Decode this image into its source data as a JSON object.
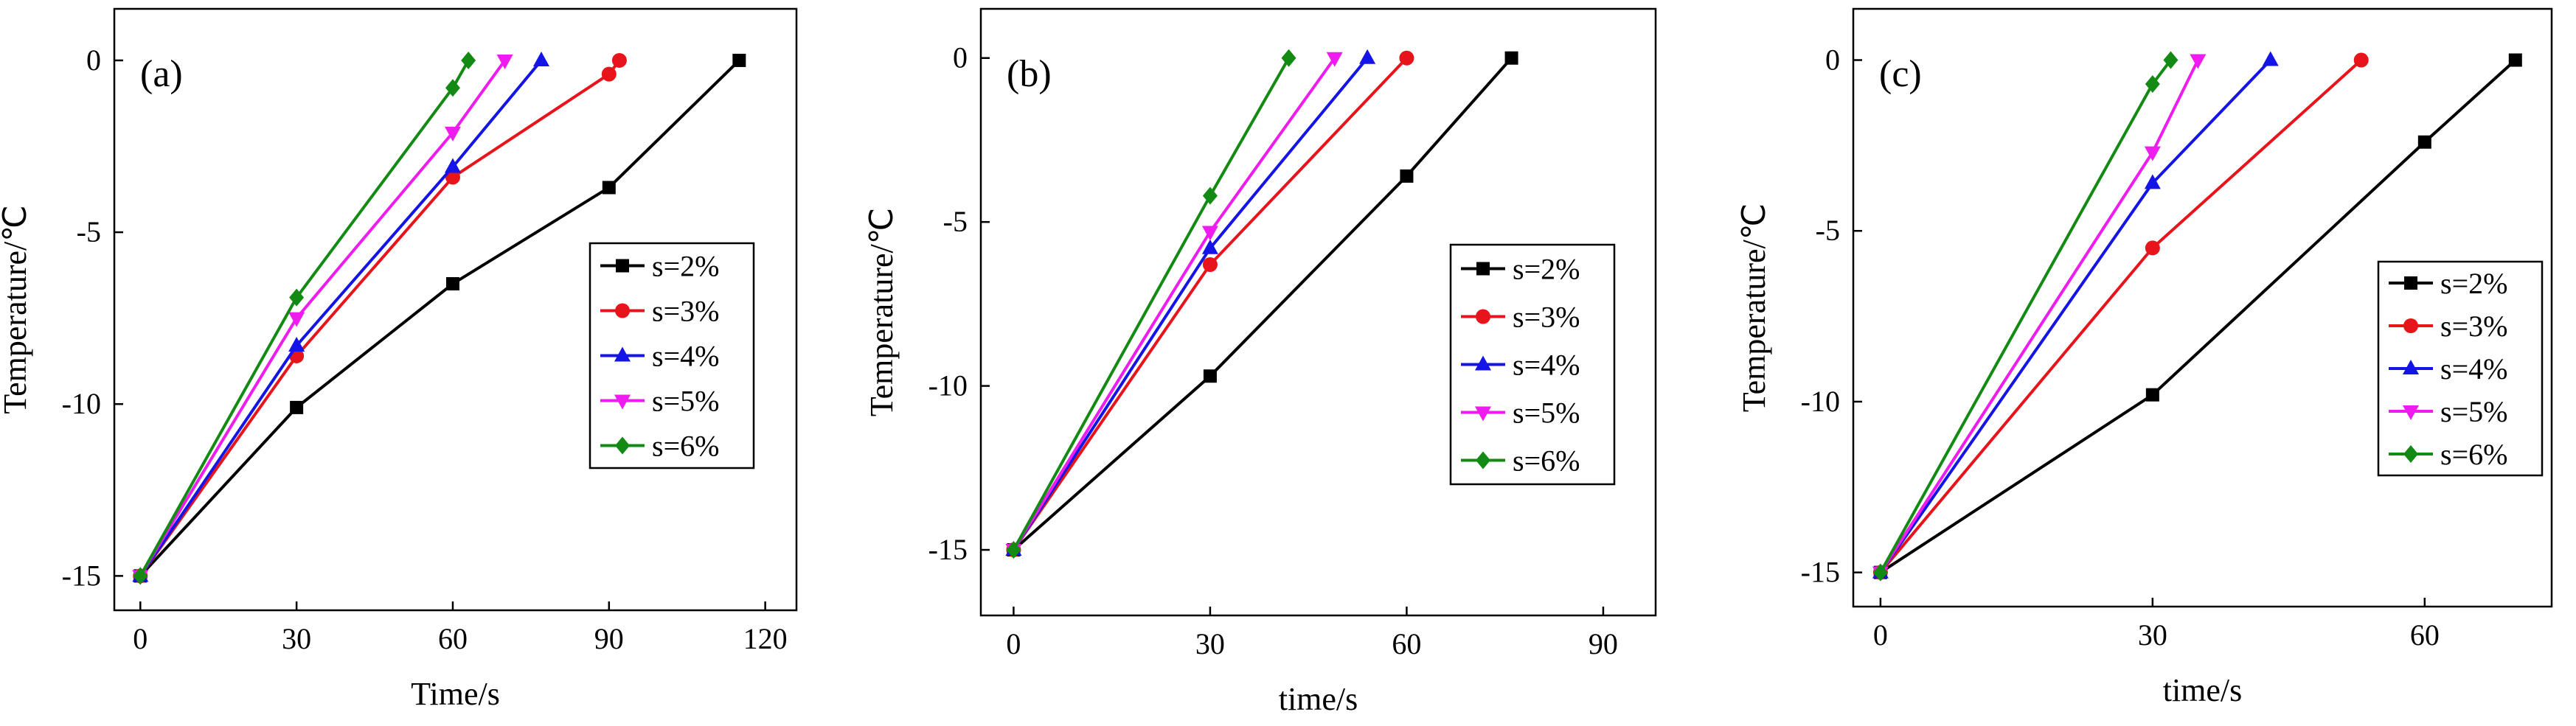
{
  "colors": {
    "s=2%": "#000000",
    "s=3%": "#e8141b",
    "s=4%": "#1414e6",
    "s=5%": "#ee1cee",
    "s=6%": "#138a13"
  },
  "chart_data": [
    {
      "type": "line",
      "panel_label": "(a)",
      "xlabel": "Time/s",
      "ylabel": "Temperature/℃",
      "xlim": [
        -5,
        126
      ],
      "ylim": [
        -16,
        1.5
      ],
      "xticks": [
        0,
        30,
        60,
        90,
        120
      ],
      "yticks": [
        0,
        -5,
        -10,
        -15
      ],
      "legend_position": "right-middle",
      "series": [
        {
          "name": "s=2%",
          "marker": "square",
          "x": [
            0,
            30,
            60,
            90,
            115
          ],
          "y": [
            -15,
            -10.1,
            -6.5,
            -3.7,
            0
          ]
        },
        {
          "name": "s=3%",
          "marker": "circle",
          "x": [
            0,
            30,
            60,
            90,
            92
          ],
          "y": [
            -15,
            -8.6,
            -3.4,
            -0.4,
            0
          ]
        },
        {
          "name": "s=4%",
          "marker": "triangle-up",
          "x": [
            0,
            30,
            60,
            77
          ],
          "y": [
            -15,
            -8.3,
            -3.1,
            0
          ]
        },
        {
          "name": "s=5%",
          "marker": "triangle-down",
          "x": [
            0,
            30,
            60,
            70
          ],
          "y": [
            -15,
            -7.5,
            -2.1,
            0
          ]
        },
        {
          "name": "s=6%",
          "marker": "diamond",
          "x": [
            0,
            30,
            60,
            63
          ],
          "y": [
            -15,
            -6.9,
            -0.8,
            0
          ]
        }
      ]
    },
    {
      "type": "line",
      "panel_label": "(b)",
      "xlabel": "time/s",
      "ylabel": "Temperature/℃",
      "xlim": [
        -5,
        98
      ],
      "ylim": [
        -17,
        1.5
      ],
      "xticks": [
        0,
        30,
        60,
        90
      ],
      "yticks": [
        0,
        -5,
        -10,
        -15
      ],
      "legend_position": "right-middle",
      "series": [
        {
          "name": "s=2%",
          "marker": "square",
          "x": [
            0,
            30,
            60,
            76
          ],
          "y": [
            -15,
            -9.7,
            -3.6,
            0
          ]
        },
        {
          "name": "s=3%",
          "marker": "circle",
          "x": [
            0,
            30,
            60
          ],
          "y": [
            -15,
            -6.3,
            0
          ]
        },
        {
          "name": "s=4%",
          "marker": "triangle-up",
          "x": [
            0,
            30,
            54
          ],
          "y": [
            -15,
            -5.8,
            0
          ]
        },
        {
          "name": "s=5%",
          "marker": "triangle-down",
          "x": [
            0,
            30,
            49
          ],
          "y": [
            -15,
            -5.3,
            0
          ]
        },
        {
          "name": "s=6%",
          "marker": "diamond",
          "x": [
            0,
            30,
            42
          ],
          "y": [
            -15,
            -4.2,
            0
          ]
        }
      ]
    },
    {
      "type": "line",
      "panel_label": "(c)",
      "xlabel": "time/s",
      "ylabel": "Temperature/℃",
      "xlim": [
        -3,
        74
      ],
      "ylim": [
        -16,
        1.5
      ],
      "xticks": [
        0,
        30,
        60
      ],
      "yticks": [
        0,
        -5,
        -10,
        -15
      ],
      "legend_position": "right-middle",
      "series": [
        {
          "name": "s=2%",
          "marker": "square",
          "x": [
            0,
            30,
            60,
            70
          ],
          "y": [
            -15,
            -9.8,
            -2.4,
            0
          ]
        },
        {
          "name": "s=3%",
          "marker": "circle",
          "x": [
            0,
            30,
            53
          ],
          "y": [
            -15,
            -5.5,
            0
          ]
        },
        {
          "name": "s=4%",
          "marker": "triangle-up",
          "x": [
            0,
            30,
            43
          ],
          "y": [
            -15,
            -3.6,
            0
          ]
        },
        {
          "name": "s=5%",
          "marker": "triangle-down",
          "x": [
            0,
            30,
            35
          ],
          "y": [
            -15,
            -2.7,
            0
          ]
        },
        {
          "name": "s=6%",
          "marker": "diamond",
          "x": [
            0,
            30,
            32
          ],
          "y": [
            -15,
            -0.7,
            0
          ]
        }
      ]
    }
  ]
}
